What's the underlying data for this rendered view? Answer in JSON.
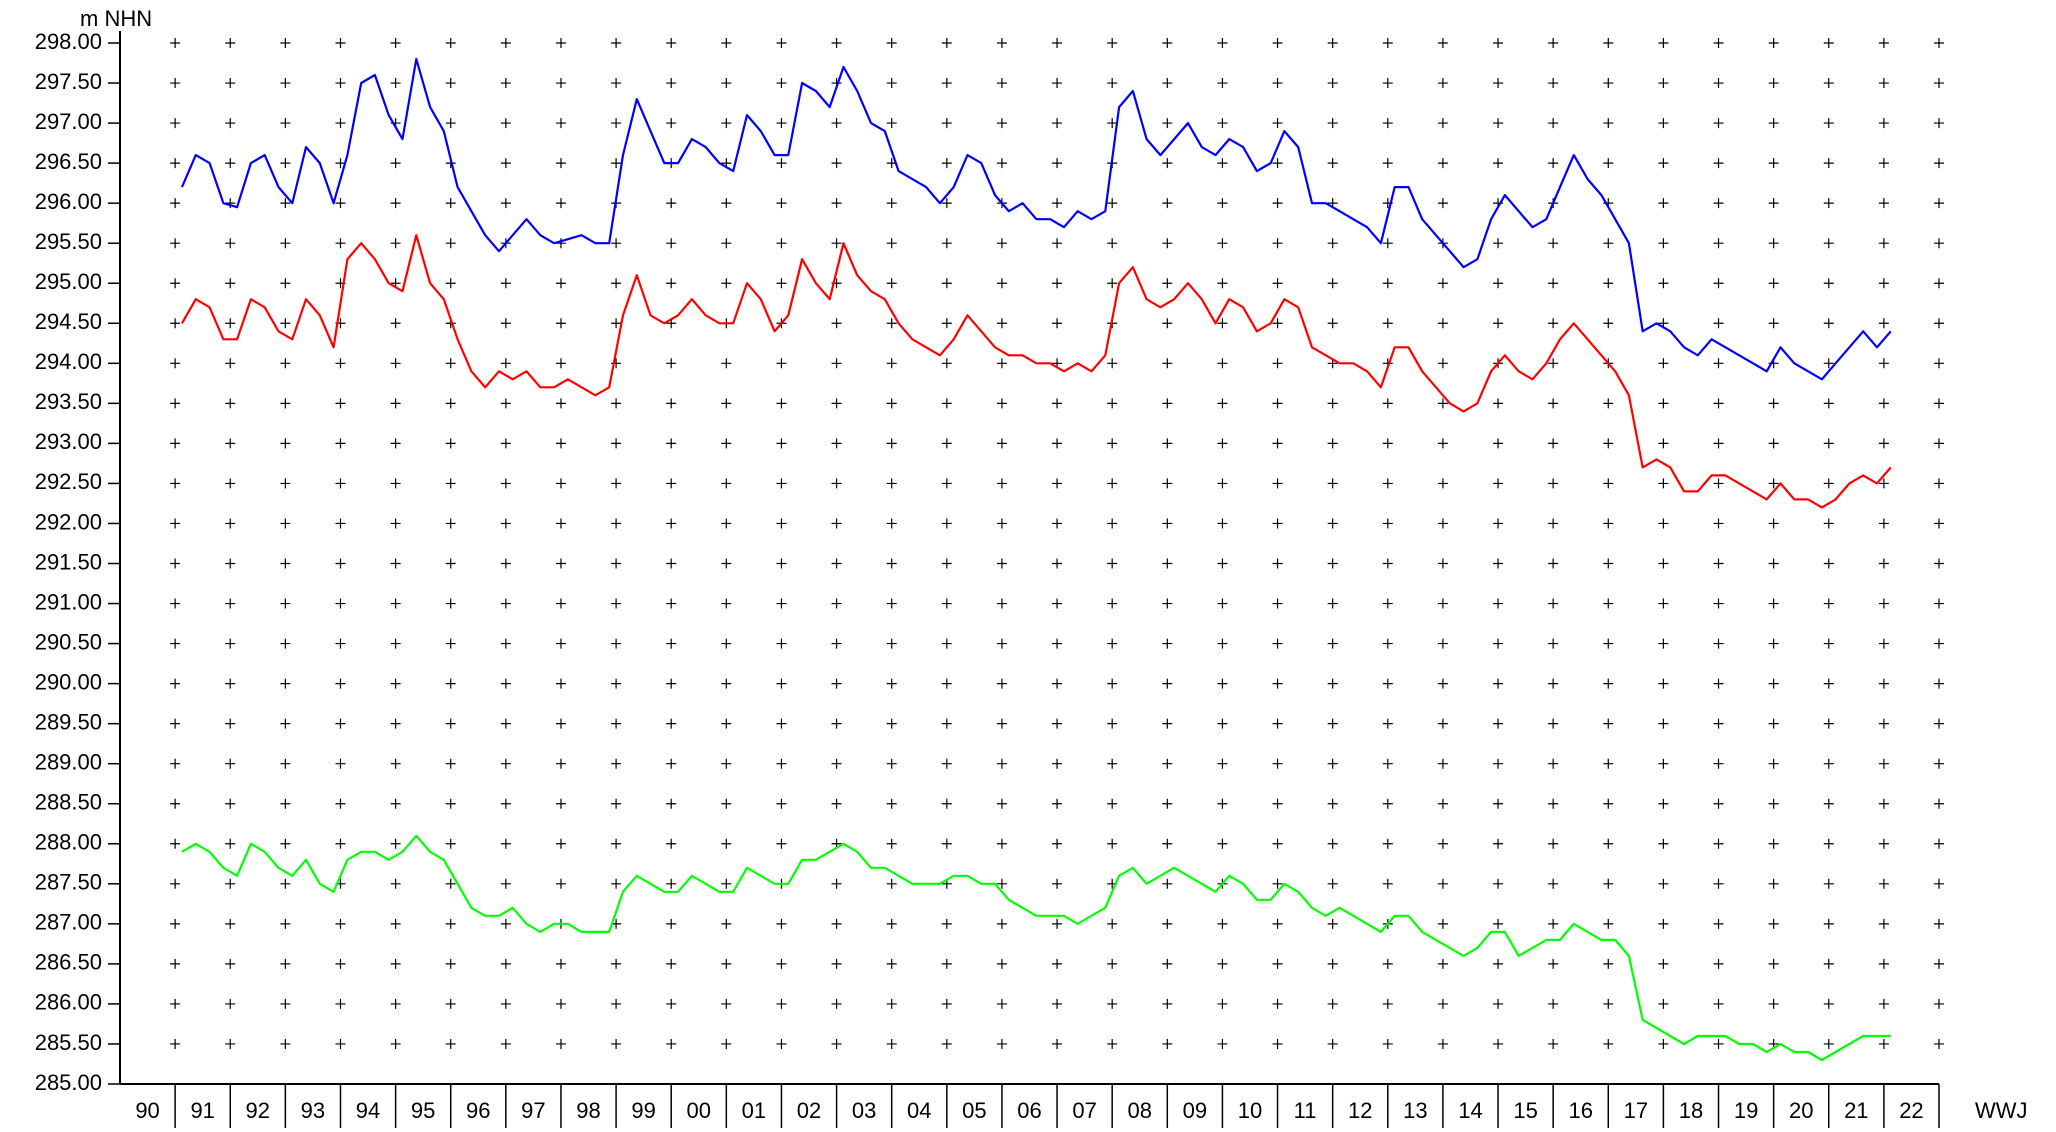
{
  "chart_data": {
    "type": "line",
    "y_label": "m NHN",
    "x_label": "WWJ",
    "grid": true,
    "categories": [
      "90",
      null,
      null,
      null,
      "91",
      null,
      null,
      null,
      "92",
      null,
      null,
      null,
      "93",
      null,
      null,
      null,
      "94",
      null,
      null,
      null,
      "95",
      null,
      null,
      null,
      "96",
      null,
      null,
      null,
      "97",
      null,
      null,
      null,
      "98",
      null,
      null,
      null,
      "99",
      null,
      null,
      null,
      "00",
      null,
      null,
      null,
      "01",
      null,
      null,
      null,
      "02",
      null,
      null,
      null,
      "03",
      null,
      null,
      null,
      "04",
      null,
      null,
      null,
      "05",
      null,
      null,
      null,
      "06",
      null,
      null,
      null,
      "07",
      null,
      null,
      null,
      "08",
      null,
      null,
      null,
      "09",
      null,
      null,
      null,
      "10",
      null,
      null,
      null,
      "11",
      null,
      null,
      null,
      "12",
      null,
      null,
      null,
      "13",
      null,
      null,
      null,
      "14",
      null,
      null,
      null,
      "15",
      null,
      null,
      null,
      "16",
      null,
      null,
      null,
      "17",
      null,
      null,
      null,
      "18",
      null,
      null,
      null,
      "19",
      null,
      null,
      null,
      "20",
      null,
      null,
      null,
      "21",
      null,
      null,
      null,
      "22",
      null,
      null,
      null
    ],
    "series": [
      {
        "color": "#0000ff",
        "values": [
          null,
          null,
          null,
          null,
          296.2,
          296.6,
          296.5,
          296.0,
          295.95,
          296.5,
          296.6,
          296.2,
          296.0,
          296.7,
          296.5,
          296.0,
          296.6,
          297.5,
          297.6,
          297.1,
          296.8,
          297.8,
          297.2,
          296.9,
          296.2,
          295.9,
          295.6,
          295.4,
          295.6,
          295.8,
          295.6,
          295.5,
          295.55,
          295.6,
          295.5,
          295.5,
          296.6,
          297.3,
          296.9,
          296.5,
          296.5,
          296.8,
          296.7,
          296.5,
          296.4,
          297.1,
          296.9,
          296.6,
          296.6,
          297.5,
          297.4,
          297.2,
          297.7,
          297.4,
          297.0,
          296.9,
          296.4,
          296.3,
          296.2,
          296.0,
          296.2,
          296.6,
          296.5,
          296.1,
          295.9,
          296.0,
          295.8,
          295.8,
          295.7,
          295.9,
          295.8,
          295.9,
          297.2,
          297.4,
          296.8,
          296.6,
          296.8,
          297.0,
          296.7,
          296.6,
          296.8,
          296.7,
          296.4,
          296.5,
          296.9,
          296.7,
          296.0,
          296.0,
          295.9,
          295.8,
          295.7,
          295.5,
          296.2,
          296.2,
          295.8,
          295.6,
          295.4,
          295.2,
          295.3,
          295.8,
          296.1,
          295.9,
          295.7,
          295.8,
          296.2,
          296.6,
          296.3,
          296.1,
          295.8,
          295.5,
          294.4,
          294.5,
          294.4,
          294.2,
          294.1,
          294.3,
          294.2,
          294.1,
          294.0,
          293.9,
          294.2,
          294.0,
          293.9,
          293.8,
          294.0,
          294.2,
          294.4,
          294.2,
          294.4,
          null,
          null,
          null
        ]
      },
      {
        "color": "#ff0000",
        "values": [
          null,
          null,
          null,
          null,
          294.5,
          294.8,
          294.7,
          294.3,
          294.3,
          294.8,
          294.7,
          294.4,
          294.3,
          294.8,
          294.6,
          294.2,
          295.3,
          295.5,
          295.3,
          295.0,
          294.9,
          295.6,
          295.0,
          294.8,
          294.3,
          293.9,
          293.7,
          293.9,
          293.8,
          293.9,
          293.7,
          293.7,
          293.8,
          293.7,
          293.6,
          293.7,
          294.6,
          295.1,
          294.6,
          294.5,
          294.6,
          294.8,
          294.6,
          294.5,
          294.5,
          295.0,
          294.8,
          294.4,
          294.6,
          295.3,
          295.0,
          294.8,
          295.5,
          295.1,
          294.9,
          294.8,
          294.5,
          294.3,
          294.2,
          294.1,
          294.3,
          294.6,
          294.4,
          294.2,
          294.1,
          294.1,
          294.0,
          294.0,
          293.9,
          294.0,
          293.9,
          294.1,
          295.0,
          295.2,
          294.8,
          294.7,
          294.8,
          295.0,
          294.8,
          294.5,
          294.8,
          294.7,
          294.4,
          294.5,
          294.8,
          294.7,
          294.2,
          294.1,
          294.0,
          294.0,
          293.9,
          293.7,
          294.2,
          294.2,
          293.9,
          293.7,
          293.5,
          293.4,
          293.5,
          293.9,
          294.1,
          293.9,
          293.8,
          294.0,
          294.3,
          294.5,
          294.3,
          294.1,
          293.9,
          293.6,
          292.7,
          292.8,
          292.7,
          292.4,
          292.4,
          292.6,
          292.6,
          292.5,
          292.4,
          292.3,
          292.5,
          292.3,
          292.3,
          292.2,
          292.3,
          292.5,
          292.6,
          292.5,
          292.7,
          null,
          null,
          null
        ]
      },
      {
        "color": "#00ff00",
        "values": [
          null,
          null,
          null,
          null,
          287.9,
          288.0,
          287.9,
          287.7,
          287.6,
          288.0,
          287.9,
          287.7,
          287.6,
          287.8,
          287.5,
          287.4,
          287.8,
          287.9,
          287.9,
          287.8,
          287.9,
          288.1,
          287.9,
          287.8,
          287.5,
          287.2,
          287.1,
          287.1,
          287.2,
          287.0,
          286.9,
          287.0,
          287.0,
          286.9,
          286.9,
          286.9,
          287.4,
          287.6,
          287.5,
          287.4,
          287.4,
          287.6,
          287.5,
          287.4,
          287.4,
          287.7,
          287.6,
          287.5,
          287.5,
          287.8,
          287.8,
          287.9,
          288.0,
          287.9,
          287.7,
          287.7,
          287.6,
          287.5,
          287.5,
          287.5,
          287.6,
          287.6,
          287.5,
          287.5,
          287.3,
          287.2,
          287.1,
          287.1,
          287.1,
          287.0,
          287.1,
          287.2,
          287.6,
          287.7,
          287.5,
          287.6,
          287.7,
          287.6,
          287.5,
          287.4,
          287.6,
          287.5,
          287.3,
          287.3,
          287.5,
          287.4,
          287.2,
          287.1,
          287.2,
          287.1,
          287.0,
          286.9,
          287.1,
          287.1,
          286.9,
          286.8,
          286.7,
          286.6,
          286.7,
          286.9,
          286.9,
          286.6,
          286.7,
          286.8,
          286.8,
          287.0,
          286.9,
          286.8,
          286.8,
          286.6,
          285.8,
          285.7,
          285.6,
          285.5,
          285.6,
          285.6,
          285.6,
          285.5,
          285.5,
          285.4,
          285.5,
          285.4,
          285.4,
          285.3,
          285.4,
          285.5,
          285.6,
          285.6,
          285.6,
          null,
          null,
          null
        ]
      }
    ],
    "ylim": [
      285,
      298
    ],
    "yticks": [
      {
        "value": 285,
        "label": "285.00"
      },
      {
        "value": 285.5,
        "label": "285.50"
      },
      {
        "value": 286,
        "label": "286.00"
      },
      {
        "value": 286.5,
        "label": "286.50"
      },
      {
        "value": 287,
        "label": "287.00"
      },
      {
        "value": 287.5,
        "label": "287.50"
      },
      {
        "value": 288,
        "label": "288.00"
      },
      {
        "value": 288.5,
        "label": "288.50"
      },
      {
        "value": 289,
        "label": "289.00"
      },
      {
        "value": 289.5,
        "label": "289.50"
      },
      {
        "value": 290,
        "label": "290.00"
      },
      {
        "value": 290.5,
        "label": "290.50"
      },
      {
        "value": 291,
        "label": "291.00"
      },
      {
        "value": 291.5,
        "label": "291.50"
      },
      {
        "value": 292,
        "label": "292.00"
      },
      {
        "value": 292.5,
        "label": "292.50"
      },
      {
        "value": 293,
        "label": "293.00"
      },
      {
        "value": 293.5,
        "label": "293.50"
      },
      {
        "value": 294,
        "label": "294.00"
      },
      {
        "value": 294.5,
        "label": "294.50"
      },
      {
        "value": 295,
        "label": "295.00"
      },
      {
        "value": 295.5,
        "label": "295.50"
      },
      {
        "value": 296,
        "label": "296.00"
      },
      {
        "value": 296.5,
        "label": "296.50"
      },
      {
        "value": 297,
        "label": "297.00"
      },
      {
        "value": 297.5,
        "label": "297.50"
      },
      {
        "value": 298,
        "label": "298.00"
      }
    ]
  }
}
